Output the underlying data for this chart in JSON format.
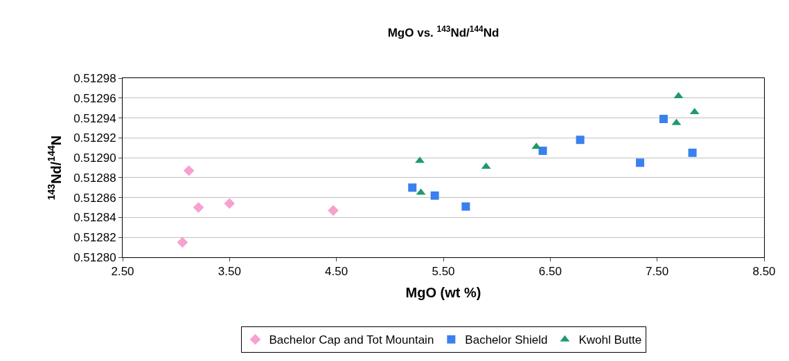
{
  "chart_data": {
    "type": "scatter",
    "title": "MgO vs. $^{143}$Nd/$^{144}$Nd",
    "xlabel": "MgO (wt %)",
    "ylabel": "$^{143}$Nd/$^{144}$N",
    "series": [
      {
        "name": "Bachelor Cap and Tot Mountain",
        "color": "#f7a1cf",
        "marker": "diamond",
        "x": [
          3.12,
          3.21,
          3.5,
          4.47,
          3.06
        ],
        "values": [
          0.512887,
          0.51285,
          0.512854,
          0.512847,
          0.512815
        ]
      },
      {
        "name": "Bachelor Shield",
        "color": "#3a80ee",
        "marker": "square",
        "x": [
          5.21,
          5.42,
          5.71,
          6.43,
          6.78,
          7.34,
          7.56,
          7.83
        ],
        "values": [
          0.51287,
          0.512862,
          0.512851,
          0.512907,
          0.512918,
          0.512895,
          0.512939,
          0.512905
        ]
      },
      {
        "name": "Kwohl Butte",
        "color": "#1e9a6c",
        "marker": "triangle",
        "x": [
          5.28,
          5.29,
          5.9,
          6.37,
          7.7,
          7.68,
          7.85
        ],
        "values": [
          0.512897,
          0.512865,
          0.512891,
          0.512911,
          0.512962,
          0.512935,
          0.512946
        ]
      }
    ],
    "xlim": [
      2.5,
      8.5
    ],
    "xticks": [
      {
        "value": 2.5,
        "label": "2.50"
      },
      {
        "value": 3.5,
        "label": "3.50"
      },
      {
        "value": 4.5,
        "label": "4.50"
      },
      {
        "value": 5.5,
        "label": "5.50"
      },
      {
        "value": 6.5,
        "label": "6.50"
      },
      {
        "value": 7.5,
        "label": "7.50"
      },
      {
        "value": 8.5,
        "label": "8.50"
      }
    ],
    "ylim": [
      0.5128,
      0.51298
    ],
    "yticks": [
      {
        "value": 0.5128,
        "label": "0.51280"
      },
      {
        "value": 0.51282,
        "label": "0.51282"
      },
      {
        "value": 0.51284,
        "label": "0.51284"
      },
      {
        "value": 0.51286,
        "label": "0.51286"
      },
      {
        "value": 0.51288,
        "label": "0.51288"
      },
      {
        "value": 0.5129,
        "label": "0.51290"
      },
      {
        "value": 0.51292,
        "label": "0.51292"
      },
      {
        "value": 0.51294,
        "label": "0.51294"
      },
      {
        "value": 0.51296,
        "label": "0.51296"
      },
      {
        "value": 0.51298,
        "label": "0.51298"
      }
    ],
    "grid": "y",
    "legend": "bottom"
  }
}
